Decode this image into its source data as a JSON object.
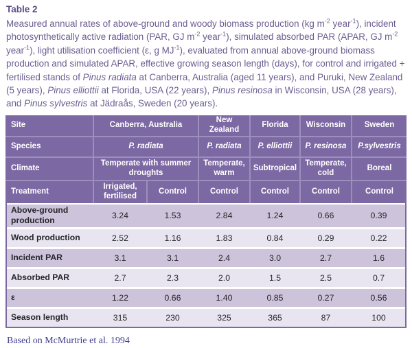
{
  "title": "Table 2",
  "caption_segments": [
    {
      "t": "Measured annual rates of above-ground and woody biomass production (kg m"
    },
    {
      "t": "-2",
      "s": "sup"
    },
    {
      "t": " year"
    },
    {
      "t": "-1",
      "s": "sup"
    },
    {
      "t": "), incident photosynthetically active radiation (PAR, GJ m"
    },
    {
      "t": "-2",
      "s": "sup"
    },
    {
      "t": " year"
    },
    {
      "t": "-1",
      "s": "sup"
    },
    {
      "t": "), simulated absorbed PAR (APAR, GJ m"
    },
    {
      "t": "-2",
      "s": "sup"
    },
    {
      "t": " year"
    },
    {
      "t": "-1",
      "s": "sup"
    },
    {
      "t": "), light utilisation coefficient (ε, g MJ"
    },
    {
      "t": "-1",
      "s": "sup"
    },
    {
      "t": "), evaluated from annual above-ground biomass production and simulated APAR, effective growing season length (days), for control and irrigated + fertilised stands of "
    },
    {
      "t": "Pinus radiata",
      "s": "i"
    },
    {
      "t": " at Canberra, Australia (aged 11 years), and Puruki, New Zealand (5 years), "
    },
    {
      "t": "Pinus elliottii",
      "s": "i"
    },
    {
      "t": " at Florida, USA (22 years), "
    },
    {
      "t": "Pinus resinosa",
      "s": "i"
    },
    {
      "t": " in Wisconsin, USA (28 years), and "
    },
    {
      "t": "Pinus sylvestris",
      "s": "i"
    },
    {
      "t": " at Jädraås, Sweden (20 years)."
    }
  ],
  "header": {
    "site": {
      "label": "Site",
      "canberra": "Canberra, Australia",
      "new_zealand": "New Zealand",
      "florida": "Florida",
      "wisconsin": "Wisconsin",
      "sweden": "Sweden"
    },
    "species": {
      "label": "Species",
      "canberra": "P. radiata",
      "new_zealand": "P. radiata",
      "florida": "P. elliottii",
      "wisconsin": "P. resinosa",
      "sweden": "P.sylvestris"
    },
    "climate": {
      "label": "Climate",
      "canberra": "Temperate with summer droughts",
      "new_zealand": "Temperate, warm",
      "florida": "Subtropical",
      "wisconsin": "Temperate, cold",
      "sweden": "Boreal"
    },
    "treatment": {
      "label": "Treatment",
      "canberra_irrigated": "Irrigated, fertilised",
      "canberra_control": "Control",
      "new_zealand": "Control",
      "florida": "Control",
      "wisconsin": "Control",
      "sweden": "Control"
    }
  },
  "rows": [
    {
      "label": "Above-ground production",
      "values": [
        "3.24",
        "1.53",
        "2.84",
        "1.24",
        "0.66",
        "0.39"
      ]
    },
    {
      "label": "Wood production",
      "values": [
        "2.52",
        "1.16",
        "1.83",
        "0.84",
        "0.29",
        "0.22"
      ]
    },
    {
      "label": "Incident PAR",
      "values": [
        "3.1",
        "3.1",
        "2.4",
        "3.0",
        "2.7",
        "1.6"
      ]
    },
    {
      "label": "Absorbed PAR",
      "values": [
        "2.7",
        "2.3",
        "2.0",
        "1.5",
        "2.5",
        "0.7"
      ]
    },
    {
      "label": "ε",
      "values": [
        "1.22",
        "0.66",
        "1.40",
        "0.85",
        "0.27",
        "0.56"
      ]
    },
    {
      "label": "Season length",
      "values": [
        "315",
        "230",
        "325",
        "365",
        "87",
        "100"
      ]
    }
  ],
  "footer": "Based on McMurtrie et al. 1994",
  "colors": {
    "header_bg": "#7c68a3",
    "header_line": "#9d8fbd",
    "row_dark": "#cdc3da",
    "row_light": "#e9e5f0",
    "title_text": "#5c4a84",
    "caption_text": "#6b5c91",
    "body_text": "#26262b",
    "footer_text": "#3e3c8e"
  }
}
